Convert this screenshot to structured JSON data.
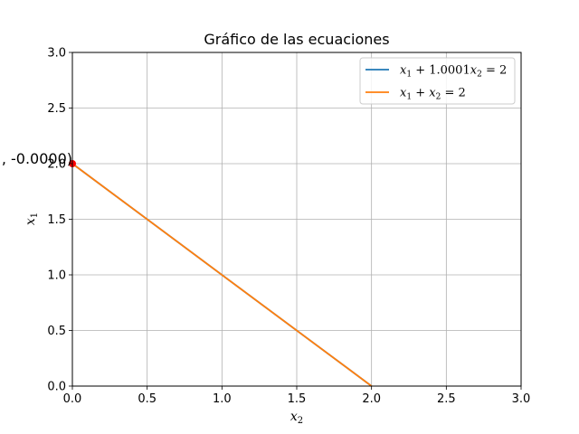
{
  "chart_data": {
    "type": "line",
    "title": "Gráfico de las ecuaciones",
    "xlabel": {
      "base": "x",
      "sub": "2"
    },
    "ylabel": {
      "base": "x",
      "sub": "1"
    },
    "xlim": [
      0,
      3
    ],
    "ylim": [
      0,
      3
    ],
    "xticks": [
      "0.0",
      "0.5",
      "1.0",
      "1.5",
      "2.0",
      "2.5",
      "3.0"
    ],
    "yticks": [
      "0.0",
      "0.5",
      "1.0",
      "1.5",
      "2.0",
      "2.5",
      "3.0"
    ],
    "grid": true,
    "legend_position": "top-right",
    "series": [
      {
        "name": "x1 + 1.0001x2 = 2",
        "legend_parts": [
          {
            "t": "x",
            "s": "i"
          },
          {
            "t": "1",
            "s": "sub"
          },
          {
            "t": " + 1.0001",
            "s": "n"
          },
          {
            "t": "x",
            "s": "i"
          },
          {
            "t": "2",
            "s": "sub"
          },
          {
            "t": " = 2",
            "s": "n"
          }
        ],
        "color": "#1f77b4",
        "x": [
          0,
          2
        ],
        "y": [
          2,
          0
        ]
      },
      {
        "name": "x1 + x2 = 2",
        "legend_parts": [
          {
            "t": "x",
            "s": "i"
          },
          {
            "t": "1",
            "s": "sub"
          },
          {
            "t": " + ",
            "s": "n"
          },
          {
            "t": "x",
            "s": "i"
          },
          {
            "t": "2",
            "s": "sub"
          },
          {
            "t": " = 2",
            "s": "n"
          }
        ],
        "color": "#ff7f0e",
        "x": [
          0,
          2
        ],
        "y": [
          2,
          0
        ]
      }
    ],
    "points": [
      {
        "x": 0,
        "y": 2,
        "color": "#ff0000"
      }
    ],
    "annotations": [
      {
        "text": ", -0.0000)",
        "x": 0,
        "y": 2
      }
    ]
  }
}
